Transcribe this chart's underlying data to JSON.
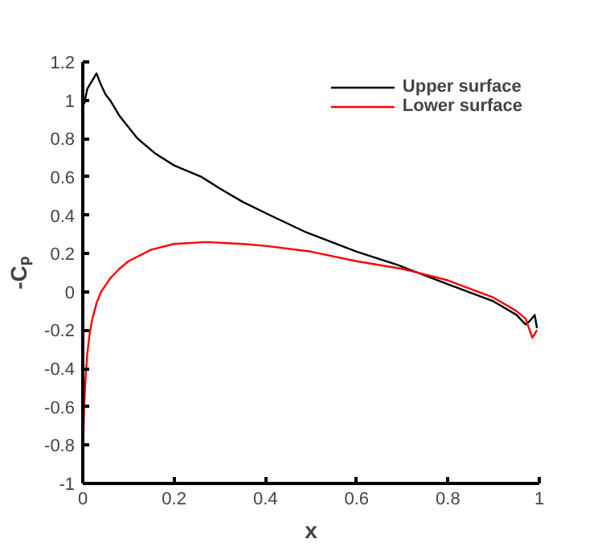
{
  "chart_data": {
    "type": "line",
    "xlabel": "x",
    "ylabel": "-Cₚ",
    "xlim": [
      0,
      1
    ],
    "ylim": [
      -1,
      1.2
    ],
    "xticks": [
      0,
      0.2,
      0.4,
      0.6,
      0.8,
      1
    ],
    "yticks": [
      -1,
      -0.8,
      -0.6,
      -0.4,
      -0.2,
      0,
      0.2,
      0.4,
      0.6,
      0.8,
      1,
      1.2
    ],
    "grid": false,
    "legend": "top right",
    "marker": "none",
    "line_style": "solid",
    "series": [
      {
        "name": "Upper surface",
        "color": "#000000",
        "x": [
          0.003,
          0.01,
          0.02,
          0.03,
          0.04,
          0.05,
          0.06,
          0.08,
          0.1,
          0.12,
          0.16,
          0.2,
          0.26,
          0.3,
          0.35,
          0.41,
          0.49,
          0.6,
          0.69,
          0.8,
          0.9,
          0.95,
          0.97,
          0.98,
          0.99,
          0.995
        ],
        "values": [
          0.98,
          1.06,
          1.1,
          1.14,
          1.08,
          1.03,
          1.0,
          0.92,
          0.86,
          0.8,
          0.72,
          0.66,
          0.6,
          0.54,
          0.47,
          0.4,
          0.31,
          0.21,
          0.14,
          0.04,
          -0.05,
          -0.12,
          -0.17,
          -0.15,
          -0.12,
          -0.19
        ]
      },
      {
        "name": "Lower surface",
        "color": "#ff0000",
        "x": [
          0.001,
          0.003,
          0.006,
          0.01,
          0.015,
          0.02,
          0.03,
          0.04,
          0.06,
          0.08,
          0.1,
          0.15,
          0.2,
          0.27,
          0.35,
          0.4,
          0.5,
          0.6,
          0.7,
          0.8,
          0.9,
          0.95,
          0.97,
          0.985,
          0.995
        ],
        "values": [
          -0.8,
          -0.6,
          -0.45,
          -0.32,
          -0.22,
          -0.15,
          -0.06,
          0,
          0.07,
          0.12,
          0.16,
          0.22,
          0.25,
          0.26,
          0.25,
          0.24,
          0.21,
          0.16,
          0.12,
          0.06,
          -0.03,
          -0.1,
          -0.14,
          -0.24,
          -0.2
        ]
      }
    ]
  }
}
